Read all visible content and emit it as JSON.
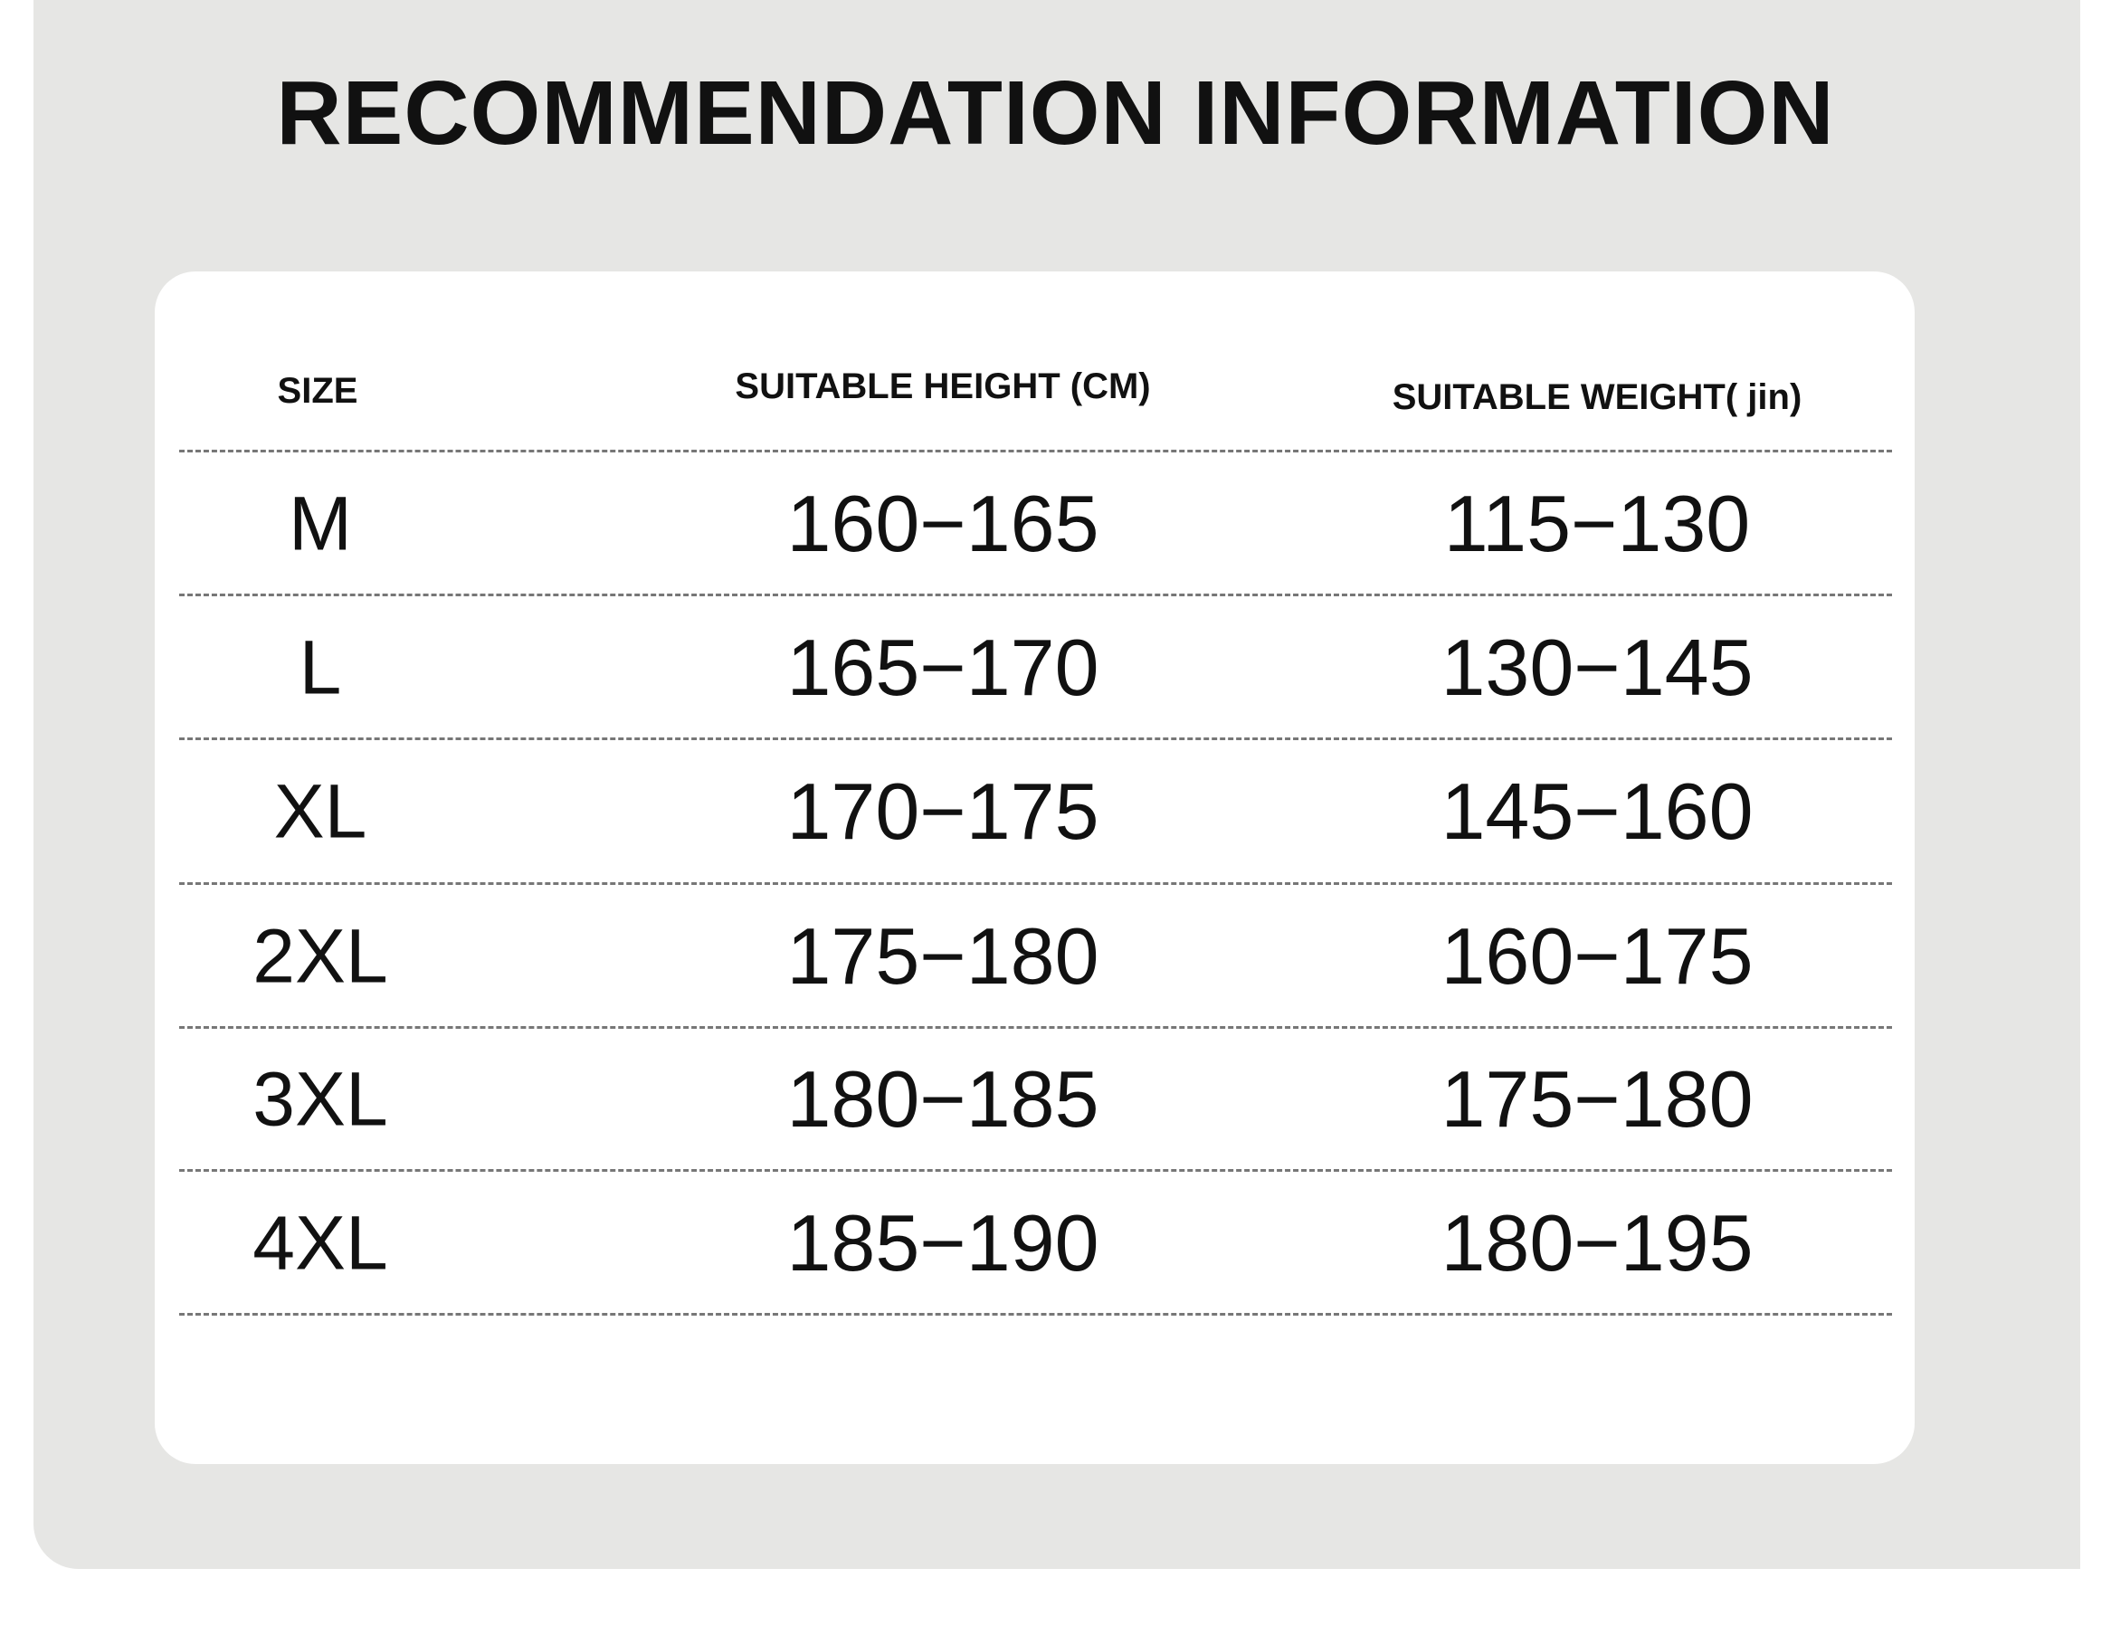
{
  "title": "RECOMMENDATION INFORMATION",
  "table": {
    "headers": [
      "SIZE",
      "SUITABLE HEIGHT (CM)",
      "SUITABLE WEIGHT( jin)"
    ],
    "rows": [
      {
        "size": "M",
        "height": "160−165",
        "weight": "115−130"
      },
      {
        "size": "L",
        "height": "165−170",
        "weight": "130−145"
      },
      {
        "size": "XL",
        "height": "170−175",
        "weight": "145−160"
      },
      {
        "size": "2XL",
        "height": "175−180",
        "weight": "160−175"
      },
      {
        "size": "3XL",
        "height": "180−185",
        "weight": "175−180"
      },
      {
        "size": "4XL",
        "height": "185−190",
        "weight": "180−195"
      }
    ]
  }
}
